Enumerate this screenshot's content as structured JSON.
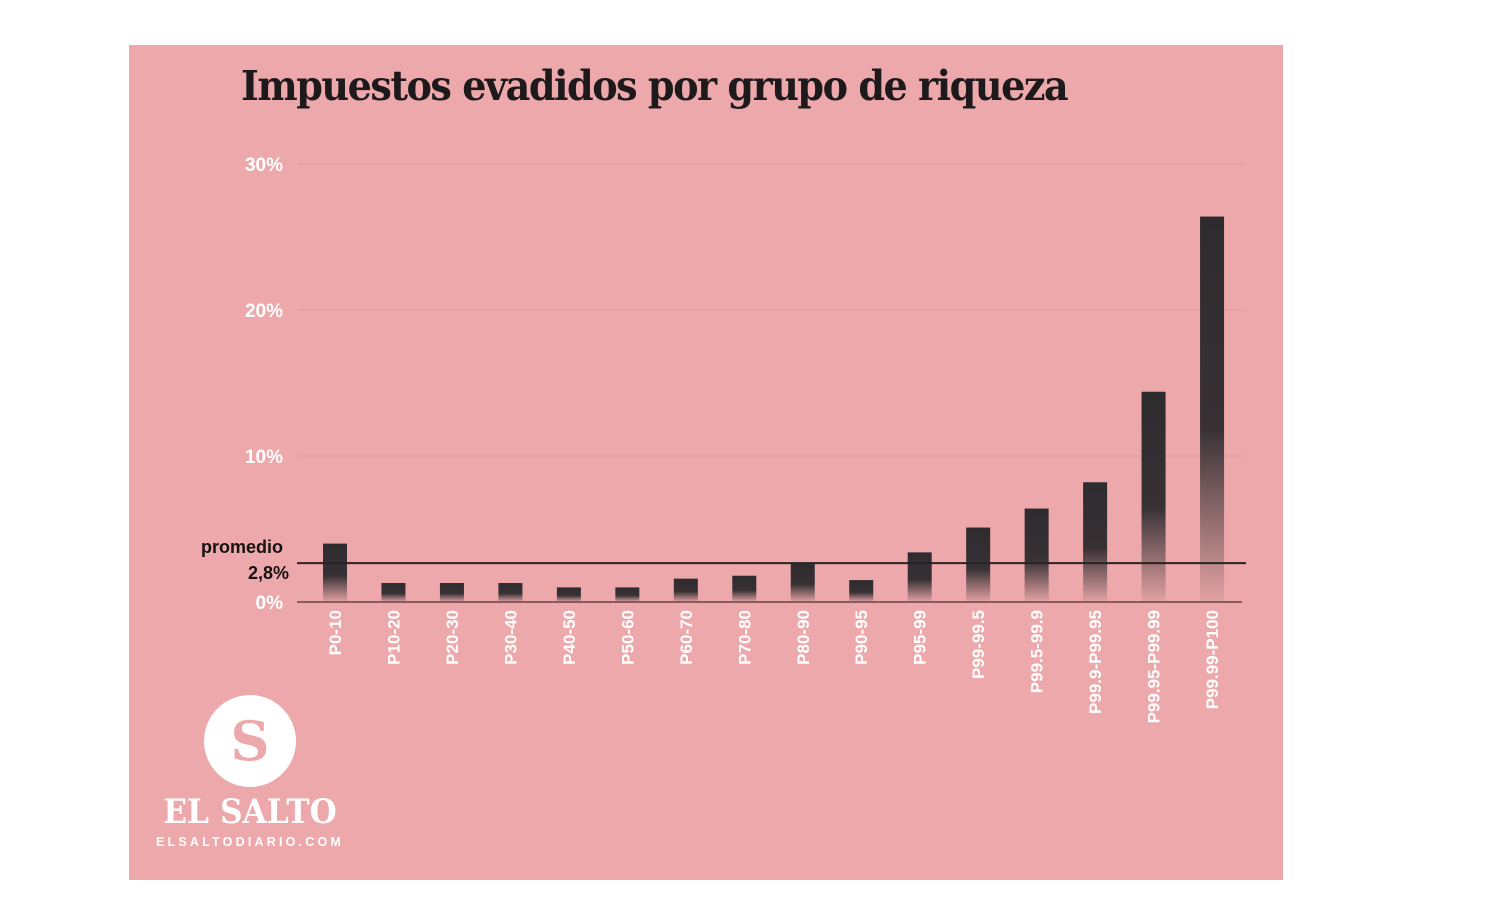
{
  "chart_data": {
    "type": "bar",
    "title": "Impuestos evadidos por grupo de riqueza",
    "xlabel": "",
    "ylabel": "",
    "ylim": [
      0,
      30
    ],
    "yticks": [
      {
        "value": 0,
        "label": "0%"
      },
      {
        "value": 10,
        "label": "10%"
      },
      {
        "value": 20,
        "label": "20%"
      },
      {
        "value": 30,
        "label": "30%"
      }
    ],
    "grid": true,
    "categories": [
      "P0-10",
      "P10-20",
      "P20-30",
      "P30-40",
      "P40-50",
      "P50-60",
      "P60-70",
      "P70-80",
      "P80-90",
      "P90-95",
      "P95-99",
      "P99-99.5",
      "P99.5-99.9",
      "P99.9-P99.95",
      "P99.95-P99.99",
      "P99.99-P100"
    ],
    "values": [
      4.0,
      1.3,
      1.3,
      1.3,
      1.0,
      1.0,
      1.6,
      1.8,
      2.7,
      1.5,
      3.4,
      5.1,
      6.4,
      8.2,
      14.4,
      26.4
    ],
    "unit": "%",
    "reference_line": {
      "value": 2.8,
      "label_top": "promedio",
      "label_bottom": "2,8%"
    },
    "colors": {
      "bar": "#2e2b2e",
      "background": "#eca8aa",
      "reference_line": "#2a2224",
      "tick_text": "#ffffff"
    }
  },
  "branding": {
    "logo_letter": "S",
    "name": "EL SALTO",
    "url": "ELSALTODIARIO.COM"
  }
}
